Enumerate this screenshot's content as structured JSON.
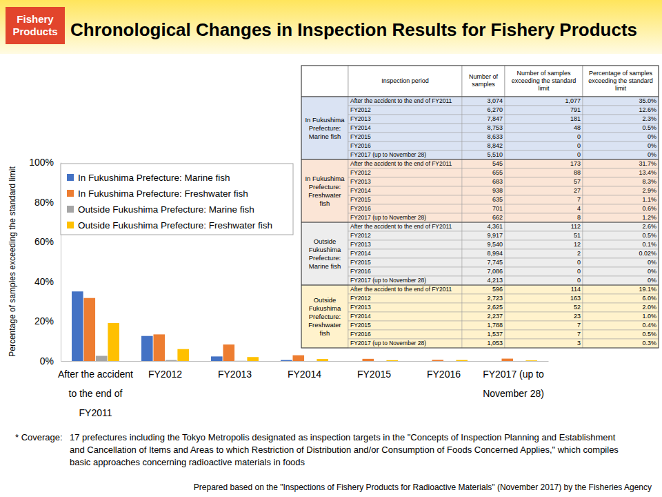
{
  "header": {
    "badge": "Fishery Products",
    "title": "Chronological Changes in Inspection Results for Fishery Products"
  },
  "chart_data": {
    "type": "bar",
    "y_label": "Percentage of samples exceeding the standard limit",
    "categories": [
      "After the accident to the end of FY2011",
      "FY2012",
      "FY2013",
      "FY2014",
      "FY2015",
      "FY2016",
      "FY2017 (up to November 28)"
    ],
    "series": [
      {
        "name": "In Fukushima Prefecture: Marine fish",
        "color": "#4472c4",
        "values": [
          35.0,
          12.6,
          2.3,
          0.5,
          0,
          0,
          0
        ]
      },
      {
        "name": "In Fukushima Prefecture: Freshwater fish",
        "color": "#ed7d31",
        "values": [
          31.7,
          13.4,
          8.3,
          2.9,
          1.1,
          0.6,
          1.2
        ]
      },
      {
        "name": "Outside Fukushima Prefecture: Marine fish",
        "color": "#a5a5a5",
        "values": [
          2.6,
          0.5,
          0.1,
          0.02,
          0,
          0,
          0
        ]
      },
      {
        "name": "Outside Fukushima Prefecture: Freshwater fish",
        "color": "#ffc000",
        "values": [
          19.1,
          6.0,
          2.0,
          1.0,
          0.4,
          0.5,
          0.3
        ]
      }
    ],
    "ylim": [
      0,
      100
    ],
    "yticks": [
      {
        "value": 0,
        "label": "0%"
      },
      {
        "value": 20,
        "label": "20%"
      },
      {
        "value": 40,
        "label": "40%"
      },
      {
        "value": 60,
        "label": "60%"
      },
      {
        "value": 80,
        "label": "80%"
      },
      {
        "value": 100,
        "label": "100%"
      }
    ],
    "grid": false,
    "legend": "upper left"
  },
  "table": {
    "columns": [
      "Inspection period",
      "Number of samples",
      "Number of samples exceeding the standard limit",
      "Percentage of samples exceeding the standard limit"
    ],
    "groups": [
      {
        "label": "In Fukushima Prefecture: Marine fish",
        "rows": [
          [
            "After the accident to the end of FY2011",
            "3,074",
            "1,077",
            "35.0%"
          ],
          [
            "FY2012",
            "6,270",
            "791",
            "12.6%"
          ],
          [
            "FY2013",
            "7,847",
            "181",
            "2.3%"
          ],
          [
            "FY2014",
            "8,753",
            "48",
            "0.5%"
          ],
          [
            "FY2015",
            "8,633",
            "0",
            "0%"
          ],
          [
            "FY2016",
            "8,842",
            "0",
            "0%"
          ],
          [
            "FY2017 (up to November 28)",
            "5,510",
            "0",
            "0%"
          ]
        ]
      },
      {
        "label": "In Fukushima Prefecture: Freshwater fish",
        "rows": [
          [
            "After the accident to the end of FY2011",
            "545",
            "173",
            "31.7%"
          ],
          [
            "FY2012",
            "655",
            "88",
            "13.4%"
          ],
          [
            "FY2013",
            "683",
            "57",
            "8.3%"
          ],
          [
            "FY2014",
            "938",
            "27",
            "2.9%"
          ],
          [
            "FY2015",
            "635",
            "7",
            "1.1%"
          ],
          [
            "FY2016",
            "701",
            "4",
            "0.6%"
          ],
          [
            "FY2017 (up to November 28)",
            "662",
            "8",
            "1.2%"
          ]
        ]
      },
      {
        "label": "Outside Fukushima Prefecture: Marine fish",
        "rows": [
          [
            "After the accident to the end of FY2011",
            "4,361",
            "112",
            "2.6%"
          ],
          [
            "FY2012",
            "9,917",
            "51",
            "0.5%"
          ],
          [
            "FY2013",
            "9,540",
            "12",
            "0.1%"
          ],
          [
            "FY2014",
            "8,994",
            "2",
            "0.02%"
          ],
          [
            "FY2015",
            "7,745",
            "0",
            "0%"
          ],
          [
            "FY2016",
            "7,086",
            "0",
            "0%"
          ],
          [
            "FY2017 (up to November 28)",
            "4,213",
            "0",
            "0%"
          ]
        ]
      },
      {
        "label": "Outside Fukushima Prefecture: Freshwater fish",
        "rows": [
          [
            "After the accident to the end of FY2011",
            "596",
            "114",
            "19.1%"
          ],
          [
            "FY2012",
            "2,723",
            "163",
            "6.0%"
          ],
          [
            "FY2013",
            "2,625",
            "52",
            "2.0%"
          ],
          [
            "FY2014",
            "2,237",
            "23",
            "1.0%"
          ],
          [
            "FY2015",
            "1,788",
            "7",
            "0.4%"
          ],
          [
            "FY2016",
            "1,537",
            "7",
            "0.5%"
          ],
          [
            "FY2017 (up to November 28)",
            "1,053",
            "3",
            "0.3%"
          ]
        ]
      }
    ]
  },
  "note": {
    "label": "* Coverage:",
    "text": "17 prefectures including the Tokyo Metropolis designated as inspection targets in the \"Concepts of Inspection Planning and Establishment and Cancellation of Items and Areas to which Restriction of Distribution and/or Consumption of Foods Concerned Applies,\" which compiles basic approaches concerning radioactive materials in foods"
  },
  "source": "Prepared based on the \"Inspections of Fishery Products for Radioactive Materials\" (November 2017) by the Fisheries Agency"
}
